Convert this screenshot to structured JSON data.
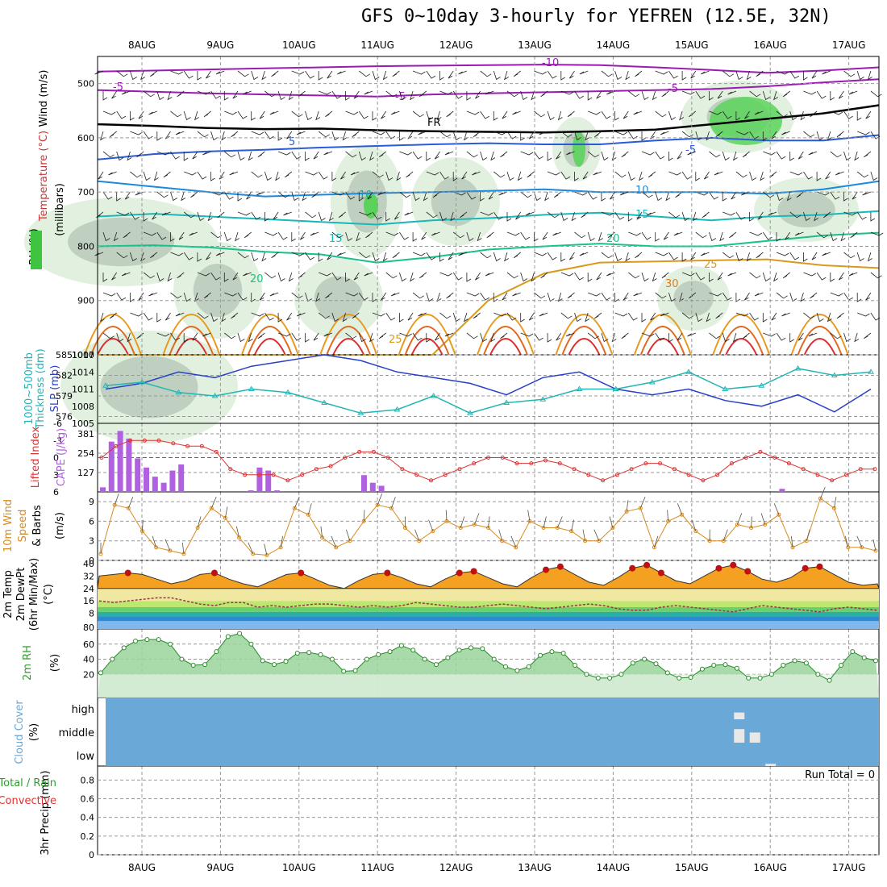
{
  "title": "GFS 0~10day 3-hourly for YEFREN (12.5E, 32N)",
  "colors": {
    "wind": "#000000",
    "temperature": "#cc3333",
    "rh": "#2e9e2e",
    "thickness": "#22b5b5",
    "slp": "#2a3fc8",
    "lifted": "#dd3333",
    "cape": "#b060e0",
    "wind10m": "#d88a20",
    "cloud": "#6aa8d8",
    "convective": "#e03030"
  },
  "chart_data": {
    "type": "meteogram",
    "dates": [
      "8AUG",
      "9AUG",
      "10AUG",
      "11AUG",
      "12AUG",
      "13AUG",
      "14AUG",
      "15AUG",
      "16AUG",
      "17AUG"
    ],
    "grid": true,
    "panels": [
      {
        "id": "upper_air",
        "type": "contour",
        "ylabels": [
          "Wind (m/s)",
          "Temperature (°C)",
          "RH (%)",
          "(millibars)"
        ],
        "y_ticks": [
          500,
          600,
          700,
          800,
          900,
          1000
        ],
        "ylim": [
          1000,
          450
        ],
        "contour_labels": [
          "-10",
          "-5",
          "-5",
          "-5",
          "FR",
          "5",
          "-5",
          "10",
          "10",
          "15",
          "15",
          "20",
          "20",
          "25",
          "30",
          "25"
        ],
        "isotherms": [
          {
            "label": "-10",
            "color": "#9a1ab4",
            "values": [
              478,
              476,
              474,
              472,
              470,
              468,
              467,
              466,
              465,
              466,
              470,
              475,
              480,
              476,
              470
            ]
          },
          {
            "label": "-5",
            "color": "#9a1ab4",
            "values": [
              512,
              515,
              518,
              520,
              522,
              524,
              520,
              518,
              516,
              514,
              512,
              510,
              505,
              498,
              492
            ]
          },
          {
            "label": "FR",
            "color": "#000000",
            "values": [
              575,
              578,
              582,
              584,
              583,
              586,
              588,
              589,
              590,
              588,
              585,
              575,
              565,
              555,
              540
            ]
          },
          {
            "label": "5",
            "color": "#2a5ad8",
            "values": [
              640,
              630,
              625,
              622,
              618,
              615,
              612,
              610,
              612,
              612,
              605,
              600,
              605,
              605,
              595
            ]
          },
          {
            "label": "10",
            "color": "#1a8ae0",
            "values": [
              680,
              690,
              700,
              708,
              705,
              702,
              700,
              698,
              695,
              700,
              700,
              700,
              703,
              695,
              680
            ]
          },
          {
            "label": "15",
            "color": "#18b8b8",
            "values": [
              745,
              740,
              745,
              750,
              755,
              760,
              752,
              748,
              742,
              738,
              745,
              752,
              745,
              742,
              735
            ]
          },
          {
            "label": "20",
            "color": "#1ac08a",
            "values": [
              800,
              798,
              802,
              810,
              815,
              830,
              820,
              806,
              800,
              795,
              800,
              800,
              790,
              780,
              775
            ]
          },
          {
            "label": "25",
            "color": "#d89a18",
            "values": [
              1000,
              1000,
              1000,
              1000,
              1000,
              1000,
              1000,
              900,
              850,
              830,
              828,
              826,
              824,
              835,
              840
            ]
          }
        ]
      },
      {
        "id": "slp_thickness",
        "type": "line",
        "ylabel_left": "1000~500mb Thickness (dm)",
        "ylabel_right": "SLP (mb)",
        "left_ticks": [
          576,
          579,
          582,
          585
        ],
        "right_ticks": [
          1005,
          1008,
          1011,
          1014,
          1017
        ],
        "series": [
          {
            "name": "SLP",
            "values": [
              1011,
              1012,
              1014,
              1013,
              1015,
              1016,
              1017,
              1016,
              1014,
              1013,
              1012,
              1010,
              1013,
              1014,
              1011,
              1010,
              1011,
              1009,
              1008,
              1010,
              1007,
              1011
            ]
          },
          {
            "name": "Thickness",
            "values": [
              580.5,
              581,
              579.5,
              579,
              580,
              579.5,
              578,
              576.5,
              577,
              579,
              576.5,
              578,
              578.5,
              580,
              580,
              581,
              582.5,
              580,
              580.5,
              583,
              582,
              582.5
            ]
          }
        ]
      },
      {
        "id": "lifted_cape",
        "type": "bar_line",
        "ylabel_left": "Lifted Index",
        "ylabel_right": "CAPE (J/kg)",
        "left_ticks": [
          "-6",
          "-3",
          "0",
          "3",
          "6"
        ],
        "right_ticks": [
          "127",
          "254",
          "381"
        ],
        "cape": [
          30,
          330,
          400,
          350,
          220,
          160,
          100,
          60,
          140,
          180,
          0,
          0,
          0,
          0,
          0,
          0,
          0,
          10,
          160,
          140,
          10,
          0,
          0,
          0,
          0,
          0,
          0,
          0,
          0,
          0,
          110,
          60,
          40,
          0,
          0,
          0,
          0,
          0,
          0,
          0,
          0,
          0,
          0,
          0,
          0,
          0,
          0,
          0,
          0,
          0,
          0,
          0,
          0,
          0,
          0,
          0,
          0,
          0,
          0,
          0,
          0,
          0,
          0,
          0,
          0,
          0,
          0,
          0,
          0,
          0,
          0,
          0,
          0,
          0,
          0,
          0,
          0,
          0,
          20,
          0,
          0,
          0,
          0,
          0,
          0,
          0,
          0,
          0,
          0,
          0,
          0,
          0,
          10,
          0,
          0,
          0
        ],
        "lifted_index": [
          0,
          -2,
          -3,
          -3,
          -3,
          -2.5,
          -2,
          -2,
          -1,
          2,
          3,
          3,
          3,
          4,
          3,
          2,
          1.5,
          0,
          -1,
          -1,
          0,
          2,
          3,
          4,
          3,
          2,
          1,
          0,
          0,
          1,
          1,
          0.5,
          1,
          2,
          3,
          4,
          3,
          2,
          1,
          1,
          2,
          3,
          4,
          3,
          1,
          0,
          -1,
          0,
          1,
          2,
          3,
          4,
          3,
          2,
          2
        ]
      },
      {
        "id": "wind10m",
        "type": "line",
        "ylabel": "10m Wind Speed (m/s) & Barbs",
        "ticks": [
          0,
          3,
          6,
          9
        ],
        "values": [
          1,
          8.5,
          8,
          4.5,
          2,
          1.5,
          1,
          5,
          8,
          6.5,
          3.5,
          1,
          0.8,
          2,
          8,
          7,
          3.5,
          2,
          3,
          6,
          8.5,
          8,
          5,
          3,
          4.5,
          6,
          5,
          5.5,
          5,
          3,
          2,
          6,
          5,
          5,
          4.5,
          3,
          3,
          5,
          7.5,
          8,
          2,
          6,
          7,
          4.5,
          3,
          3,
          5.5,
          5,
          5.5,
          7,
          2,
          3,
          9.5,
          8,
          2,
          2,
          1.5
        ]
      },
      {
        "id": "temp_dewpt",
        "type": "area",
        "ylabel": "2m Temp 2m DewPt (6hr Min/Max) (°C)",
        "ticks": [
          40,
          32,
          24,
          16,
          8,
          80
        ],
        "temp": [
          32,
          33,
          34,
          33,
          30,
          27,
          29,
          33,
          34,
          30,
          27,
          25,
          29,
          33,
          34,
          30,
          26,
          24,
          29,
          33,
          34,
          31,
          27,
          25,
          30,
          34,
          35,
          31,
          27,
          25,
          31,
          36,
          38,
          33,
          28,
          26,
          31,
          37,
          39,
          34,
          29,
          27,
          32,
          37,
          39,
          35,
          30,
          28,
          31,
          37,
          38,
          33,
          28,
          26,
          27
        ],
        "dewpt": [
          16,
          15,
          16,
          17,
          18,
          18,
          16,
          14,
          13,
          15,
          15,
          12,
          13,
          12,
          13,
          14,
          14,
          13,
          12,
          13,
          12,
          13,
          15,
          14,
          13,
          12,
          12,
          13,
          14,
          13,
          12,
          11,
          12,
          13,
          14,
          13,
          11,
          10,
          10,
          12,
          13,
          12,
          11,
          10,
          9,
          11,
          13,
          12,
          11,
          10,
          9,
          11,
          12,
          11,
          10
        ]
      },
      {
        "id": "rh2m",
        "type": "area",
        "ylabel": "2m RH (%)",
        "ticks": [
          20,
          40,
          60
        ],
        "values": [
          22,
          40,
          55,
          64,
          66,
          66,
          60,
          40,
          32,
          33,
          50,
          70,
          74,
          60,
          38,
          33,
          37,
          48,
          49,
          46,
          40,
          24,
          25,
          40,
          46,
          50,
          58,
          52,
          40,
          33,
          42,
          52,
          55,
          54,
          40,
          30,
          25,
          30,
          45,
          50,
          48,
          32,
          20,
          15,
          15,
          20,
          35,
          40,
          34,
          22,
          15,
          16,
          27,
          32,
          33,
          28,
          15,
          15,
          20,
          32,
          38,
          35,
          20,
          12,
          32,
          50,
          42,
          38
        ]
      },
      {
        "id": "cloud",
        "type": "bar",
        "ylabel": "Cloud Cover (%)",
        "ticks": [
          "high",
          "middle",
          "low"
        ],
        "bars": [
          {
            "date_index": 7.6,
            "level": "high",
            "value": 30
          },
          {
            "date_index": 7.6,
            "level": "middle",
            "value": 60
          },
          {
            "date_index": 7.8,
            "level": "middle",
            "value": 45
          },
          {
            "date_index": 8.0,
            "level": "low",
            "value": 10
          }
        ]
      },
      {
        "id": "precip",
        "type": "bar",
        "ylabel": "3hr Precip (mm)",
        "legend": [
          "Total / Rain",
          "Convective"
        ],
        "ticks": [
          "0",
          "0.2",
          "0.4",
          "0.6",
          "0.8"
        ],
        "run_total": "Run Total = 0",
        "values": []
      }
    ]
  }
}
